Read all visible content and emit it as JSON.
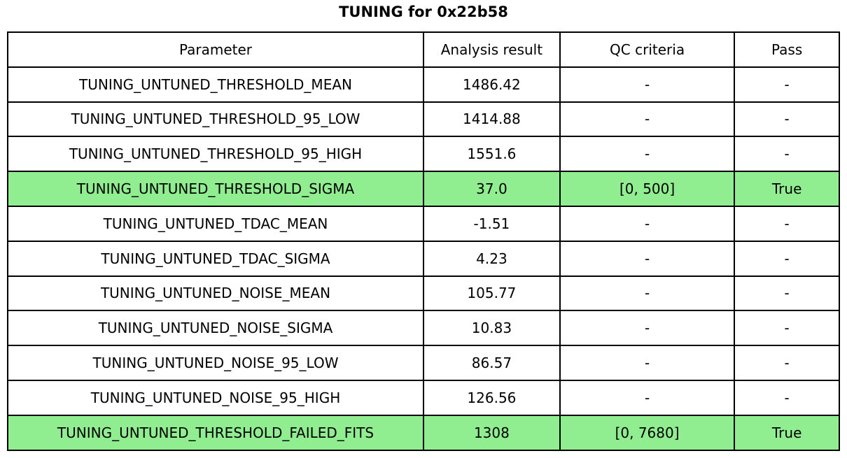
{
  "chart_data": {
    "type": "table",
    "title": "TUNING for 0x22b58",
    "columns": [
      "Parameter",
      "Analysis result",
      "QC criteria",
      "Pass"
    ],
    "rows": [
      {
        "cells": [
          "TUNING_UNTUNED_THRESHOLD_MEAN",
          "1486.42",
          "-",
          "-"
        ],
        "highlight": false
      },
      {
        "cells": [
          "TUNING_UNTUNED_THRESHOLD_95_LOW",
          "1414.88",
          "-",
          "-"
        ],
        "highlight": false
      },
      {
        "cells": [
          "TUNING_UNTUNED_THRESHOLD_95_HIGH",
          "1551.6",
          "-",
          "-"
        ],
        "highlight": false
      },
      {
        "cells": [
          "TUNING_UNTUNED_THRESHOLD_SIGMA",
          "37.0",
          "[0, 500]",
          "True"
        ],
        "highlight": true
      },
      {
        "cells": [
          "TUNING_UNTUNED_TDAC_MEAN",
          "-1.51",
          "-",
          "-"
        ],
        "highlight": false
      },
      {
        "cells": [
          "TUNING_UNTUNED_TDAC_SIGMA",
          "4.23",
          "-",
          "-"
        ],
        "highlight": false
      },
      {
        "cells": [
          "TUNING_UNTUNED_NOISE_MEAN",
          "105.77",
          "-",
          "-"
        ],
        "highlight": false
      },
      {
        "cells": [
          "TUNING_UNTUNED_NOISE_SIGMA",
          "10.83",
          "-",
          "-"
        ],
        "highlight": false
      },
      {
        "cells": [
          "TUNING_UNTUNED_NOISE_95_LOW",
          "86.57",
          "-",
          "-"
        ],
        "highlight": false
      },
      {
        "cells": [
          "TUNING_UNTUNED_NOISE_95_HIGH",
          "126.56",
          "-",
          "-"
        ],
        "highlight": false
      },
      {
        "cells": [
          "TUNING_UNTUNED_THRESHOLD_FAILED_FITS",
          "1308",
          "[0, 7680]",
          "True"
        ],
        "highlight": true
      }
    ],
    "highlight_color": "#90EE90",
    "layout": {
      "grid": "full-borders",
      "legend": "none"
    }
  }
}
